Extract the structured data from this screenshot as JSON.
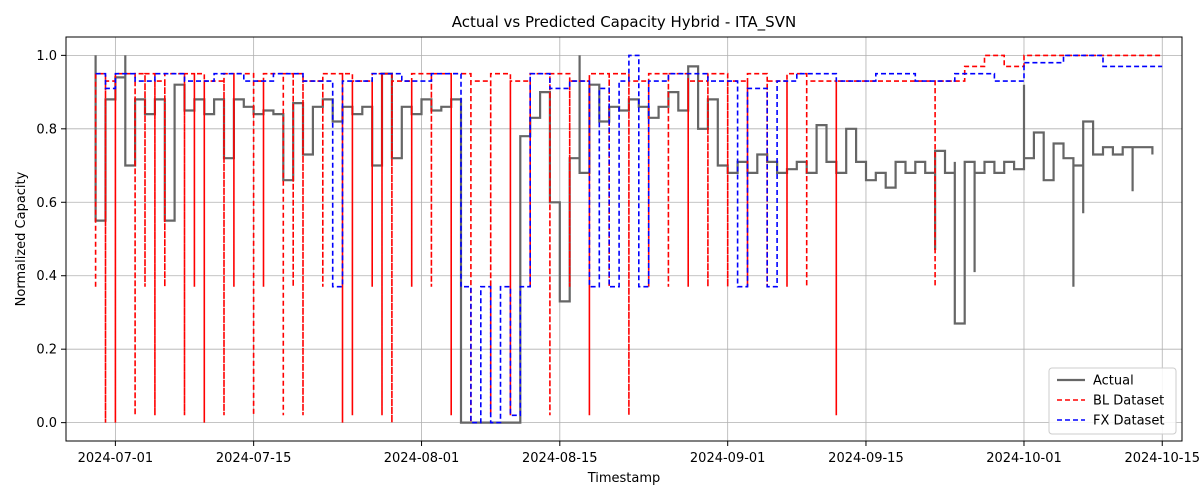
{
  "chart_data": {
    "type": "line",
    "title": "Actual vs Predicted Capacity Hybrid - ITA_SVN",
    "xlabel": "Timestamp",
    "ylabel": "Normalized Capacity",
    "xlim": [
      "2024-06-26",
      "2024-10-17"
    ],
    "ylim": [
      -0.05,
      1.05
    ],
    "x_ticks": [
      "2024-07-01",
      "2024-07-15",
      "2024-08-01",
      "2024-08-15",
      "2024-09-01",
      "2024-09-15",
      "2024-10-01",
      "2024-10-15"
    ],
    "y_ticks": [
      "0.0",
      "0.2",
      "0.4",
      "0.6",
      "0.8",
      "1.0"
    ],
    "grid": true,
    "legend_position": "bottom-right",
    "series": [
      {
        "name": "Actual",
        "color": "#666666",
        "style": "solid",
        "step": true,
        "points": [
          [
            "2024-06-29",
            1.0
          ],
          [
            "2024-06-29",
            0.55
          ],
          [
            "2024-06-30",
            0.88
          ],
          [
            "2024-07-01",
            0.94
          ],
          [
            "2024-07-02",
            1.0
          ],
          [
            "2024-07-02",
            0.7
          ],
          [
            "2024-07-03",
            0.88
          ],
          [
            "2024-07-04",
            0.84
          ],
          [
            "2024-07-05",
            0.88
          ],
          [
            "2024-07-06",
            0.55
          ],
          [
            "2024-07-07",
            0.92
          ],
          [
            "2024-07-08",
            0.85
          ],
          [
            "2024-07-09",
            0.88
          ],
          [
            "2024-07-10",
            0.84
          ],
          [
            "2024-07-11",
            0.88
          ],
          [
            "2024-07-12",
            0.72
          ],
          [
            "2024-07-13",
            0.88
          ],
          [
            "2024-07-14",
            0.86
          ],
          [
            "2024-07-15",
            0.84
          ],
          [
            "2024-07-16",
            0.85
          ],
          [
            "2024-07-17",
            0.84
          ],
          [
            "2024-07-18",
            0.66
          ],
          [
            "2024-07-19",
            0.87
          ],
          [
            "2024-07-20",
            0.73
          ],
          [
            "2024-07-21",
            0.86
          ],
          [
            "2024-07-22",
            0.88
          ],
          [
            "2024-07-23",
            0.82
          ],
          [
            "2024-07-24",
            0.86
          ],
          [
            "2024-07-25",
            0.84
          ],
          [
            "2024-07-26",
            0.86
          ],
          [
            "2024-07-27",
            0.7
          ],
          [
            "2024-07-28",
            0.95
          ],
          [
            "2024-07-29",
            0.72
          ],
          [
            "2024-07-30",
            0.86
          ],
          [
            "2024-07-31",
            0.84
          ],
          [
            "2024-08-01",
            0.88
          ],
          [
            "2024-08-02",
            0.85
          ],
          [
            "2024-08-03",
            0.86
          ],
          [
            "2024-08-04",
            0.88
          ],
          [
            "2024-08-05",
            0.76
          ],
          [
            "2024-08-05",
            0.0
          ],
          [
            "2024-08-11",
            0.0
          ],
          [
            "2024-08-11",
            0.78
          ],
          [
            "2024-08-12",
            0.83
          ],
          [
            "2024-08-13",
            0.9
          ],
          [
            "2024-08-14",
            0.6
          ],
          [
            "2024-08-15",
            0.33
          ],
          [
            "2024-08-16",
            0.72
          ],
          [
            "2024-08-17",
            1.0
          ],
          [
            "2024-08-17",
            0.68
          ],
          [
            "2024-08-18",
            0.92
          ],
          [
            "2024-08-19",
            0.82
          ],
          [
            "2024-08-20",
            0.86
          ],
          [
            "2024-08-21",
            0.85
          ],
          [
            "2024-08-22",
            0.88
          ],
          [
            "2024-08-23",
            0.86
          ],
          [
            "2024-08-24",
            0.83
          ],
          [
            "2024-08-25",
            0.86
          ],
          [
            "2024-08-26",
            0.9
          ],
          [
            "2024-08-27",
            0.85
          ],
          [
            "2024-08-28",
            0.97
          ],
          [
            "2024-08-29",
            0.8
          ],
          [
            "2024-08-30",
            0.88
          ],
          [
            "2024-08-31",
            0.7
          ],
          [
            "2024-09-01",
            0.68
          ],
          [
            "2024-09-02",
            0.71
          ],
          [
            "2024-09-03",
            0.68
          ],
          [
            "2024-09-04",
            0.73
          ],
          [
            "2024-09-05",
            0.71
          ],
          [
            "2024-09-06",
            0.68
          ],
          [
            "2024-09-07",
            0.69
          ],
          [
            "2024-09-08",
            0.71
          ],
          [
            "2024-09-09",
            0.68
          ],
          [
            "2024-09-10",
            0.81
          ],
          [
            "2024-09-11",
            0.71
          ],
          [
            "2024-09-12",
            0.68
          ],
          [
            "2024-09-13",
            0.8
          ],
          [
            "2024-09-14",
            0.71
          ],
          [
            "2024-09-15",
            0.66
          ],
          [
            "2024-09-16",
            0.68
          ],
          [
            "2024-09-17",
            0.64
          ],
          [
            "2024-09-18",
            0.71
          ],
          [
            "2024-09-19",
            0.68
          ],
          [
            "2024-09-20",
            0.71
          ],
          [
            "2024-09-21",
            0.68
          ],
          [
            "2024-09-22",
            0.47
          ],
          [
            "2024-09-22",
            0.74
          ],
          [
            "2024-09-23",
            0.68
          ],
          [
            "2024-09-24",
            0.71
          ],
          [
            "2024-09-24",
            0.27
          ],
          [
            "2024-09-25",
            0.71
          ],
          [
            "2024-09-26",
            0.41
          ],
          [
            "2024-09-26",
            0.68
          ],
          [
            "2024-09-27",
            0.71
          ],
          [
            "2024-09-28",
            0.68
          ],
          [
            "2024-09-29",
            0.71
          ],
          [
            "2024-09-30",
            0.69
          ],
          [
            "2024-10-01",
            0.92
          ],
          [
            "2024-10-01",
            0.72
          ],
          [
            "2024-10-02",
            0.79
          ],
          [
            "2024-10-03",
            0.66
          ],
          [
            "2024-10-04",
            0.76
          ],
          [
            "2024-10-05",
            0.72
          ],
          [
            "2024-10-06",
            0.37
          ],
          [
            "2024-10-06",
            0.7
          ],
          [
            "2024-10-07",
            0.57
          ],
          [
            "2024-10-07",
            0.82
          ],
          [
            "2024-10-08",
            0.73
          ],
          [
            "2024-10-09",
            0.75
          ],
          [
            "2024-10-10",
            0.73
          ],
          [
            "2024-10-11",
            0.75
          ],
          [
            "2024-10-12",
            0.63
          ],
          [
            "2024-10-12",
            0.75
          ],
          [
            "2024-10-14",
            0.75
          ],
          [
            "2024-10-14",
            0.73
          ]
        ]
      },
      {
        "name": "BL Dataset",
        "color": "#ff0000",
        "style": "dashed",
        "step": true,
        "points": [
          [
            "2024-06-29",
            0.37
          ],
          [
            "2024-06-29",
            0.95
          ],
          [
            "2024-06-30",
            0.0
          ],
          [
            "2024-06-30",
            0.93
          ],
          [
            "2024-07-01",
            0.0
          ],
          [
            "2024-07-01",
            0.95
          ],
          [
            "2024-07-03",
            0.02
          ],
          [
            "2024-07-03",
            0.95
          ],
          [
            "2024-07-04",
            0.37
          ],
          [
            "2024-07-04",
            0.95
          ],
          [
            "2024-07-05",
            0.02
          ],
          [
            "2024-07-05",
            0.93
          ],
          [
            "2024-07-06",
            0.37
          ],
          [
            "2024-07-06",
            0.95
          ],
          [
            "2024-07-08",
            0.02
          ],
          [
            "2024-07-08",
            0.95
          ],
          [
            "2024-07-09",
            0.37
          ],
          [
            "2024-07-09",
            0.95
          ],
          [
            "2024-07-10",
            0.0
          ],
          [
            "2024-07-10",
            0.93
          ],
          [
            "2024-07-12",
            0.02
          ],
          [
            "2024-07-12",
            0.95
          ],
          [
            "2024-07-13",
            0.37
          ],
          [
            "2024-07-13",
            0.95
          ],
          [
            "2024-07-15",
            0.02
          ],
          [
            "2024-07-15",
            0.93
          ],
          [
            "2024-07-16",
            0.37
          ],
          [
            "2024-07-16",
            0.95
          ],
          [
            "2024-07-18",
            0.02
          ],
          [
            "2024-07-18",
            0.95
          ],
          [
            "2024-07-19",
            0.37
          ],
          [
            "2024-07-19",
            0.95
          ],
          [
            "2024-07-20",
            0.02
          ],
          [
            "2024-07-20",
            0.93
          ],
          [
            "2024-07-22",
            0.37
          ],
          [
            "2024-07-22",
            0.95
          ],
          [
            "2024-07-24",
            0.0
          ],
          [
            "2024-07-24",
            0.95
          ],
          [
            "2024-07-25",
            0.02
          ],
          [
            "2024-07-25",
            0.93
          ],
          [
            "2024-07-27",
            0.37
          ],
          [
            "2024-07-27",
            0.95
          ],
          [
            "2024-07-28",
            0.02
          ],
          [
            "2024-07-28",
            0.95
          ],
          [
            "2024-07-29",
            0.0
          ],
          [
            "2024-07-29",
            0.93
          ],
          [
            "2024-07-31",
            0.37
          ],
          [
            "2024-07-31",
            0.95
          ],
          [
            "2024-08-02",
            0.37
          ],
          [
            "2024-08-02",
            0.95
          ],
          [
            "2024-08-04",
            0.02
          ],
          [
            "2024-08-04",
            0.95
          ],
          [
            "2024-08-06",
            0.0
          ],
          [
            "2024-08-06",
            0.93
          ],
          [
            "2024-08-08",
            0.02
          ],
          [
            "2024-08-08",
            0.95
          ],
          [
            "2024-08-10",
            0.02
          ],
          [
            "2024-08-10",
            0.93
          ],
          [
            "2024-08-12",
            0.37
          ],
          [
            "2024-08-12",
            0.95
          ],
          [
            "2024-08-14",
            0.02
          ],
          [
            "2024-08-14",
            0.95
          ],
          [
            "2024-08-16",
            0.37
          ],
          [
            "2024-08-16",
            0.93
          ],
          [
            "2024-08-18",
            0.02
          ],
          [
            "2024-08-18",
            0.95
          ],
          [
            "2024-08-20",
            0.37
          ],
          [
            "2024-08-20",
            0.95
          ],
          [
            "2024-08-22",
            0.02
          ],
          [
            "2024-08-22",
            0.93
          ],
          [
            "2024-08-24",
            0.37
          ],
          [
            "2024-08-24",
            0.95
          ],
          [
            "2024-08-26",
            0.37
          ],
          [
            "2024-08-26",
            0.95
          ],
          [
            "2024-08-28",
            0.37
          ],
          [
            "2024-08-28",
            0.93
          ],
          [
            "2024-08-30",
            0.37
          ],
          [
            "2024-08-30",
            0.95
          ],
          [
            "2024-09-01",
            0.37
          ],
          [
            "2024-09-01",
            0.93
          ],
          [
            "2024-09-03",
            0.37
          ],
          [
            "2024-09-03",
            0.95
          ],
          [
            "2024-09-05",
            0.37
          ],
          [
            "2024-09-05",
            0.93
          ],
          [
            "2024-09-07",
            0.37
          ],
          [
            "2024-09-07",
            0.95
          ],
          [
            "2024-09-09",
            0.37
          ],
          [
            "2024-09-09",
            0.93
          ],
          [
            "2024-09-12",
            0.02
          ],
          [
            "2024-09-12",
            0.93
          ],
          [
            "2024-09-22",
            0.37
          ],
          [
            "2024-09-22",
            0.93
          ],
          [
            "2024-09-25",
            0.97
          ],
          [
            "2024-09-27",
            1.0
          ],
          [
            "2024-09-29",
            0.97
          ],
          [
            "2024-10-01",
            1.0
          ],
          [
            "2024-10-15",
            1.0
          ]
        ]
      },
      {
        "name": "FX Dataset",
        "color": "#0000ff",
        "style": "dashed",
        "step": true,
        "points": [
          [
            "2024-06-29",
            0.95
          ],
          [
            "2024-06-30",
            0.91
          ],
          [
            "2024-07-01",
            0.95
          ],
          [
            "2024-07-03",
            0.93
          ],
          [
            "2024-07-05",
            0.95
          ],
          [
            "2024-07-08",
            0.93
          ],
          [
            "2024-07-11",
            0.95
          ],
          [
            "2024-07-14",
            0.93
          ],
          [
            "2024-07-17",
            0.95
          ],
          [
            "2024-07-20",
            0.93
          ],
          [
            "2024-07-23",
            0.37
          ],
          [
            "2024-07-24",
            0.93
          ],
          [
            "2024-07-27",
            0.95
          ],
          [
            "2024-07-30",
            0.93
          ],
          [
            "2024-08-02",
            0.95
          ],
          [
            "2024-08-05",
            0.37
          ],
          [
            "2024-08-06",
            0.0
          ],
          [
            "2024-08-07",
            0.37
          ],
          [
            "2024-08-08",
            0.0
          ],
          [
            "2024-08-09",
            0.37
          ],
          [
            "2024-08-10",
            0.02
          ],
          [
            "2024-08-11",
            0.37
          ],
          [
            "2024-08-12",
            0.95
          ],
          [
            "2024-08-14",
            0.91
          ],
          [
            "2024-08-16",
            0.93
          ],
          [
            "2024-08-18",
            0.37
          ],
          [
            "2024-08-19",
            0.91
          ],
          [
            "2024-08-20",
            0.37
          ],
          [
            "2024-08-21",
            0.93
          ],
          [
            "2024-08-22",
            1.0
          ],
          [
            "2024-08-23",
            0.37
          ],
          [
            "2024-08-24",
            0.93
          ],
          [
            "2024-08-26",
            0.95
          ],
          [
            "2024-08-30",
            0.93
          ],
          [
            "2024-09-02",
            0.37
          ],
          [
            "2024-09-03",
            0.91
          ],
          [
            "2024-09-05",
            0.37
          ],
          [
            "2024-09-06",
            0.93
          ],
          [
            "2024-09-08",
            0.95
          ],
          [
            "2024-09-12",
            0.93
          ],
          [
            "2024-09-16",
            0.95
          ],
          [
            "2024-09-20",
            0.93
          ],
          [
            "2024-09-24",
            0.95
          ],
          [
            "2024-09-28",
            0.93
          ],
          [
            "2024-10-01",
            0.98
          ],
          [
            "2024-10-05",
            1.0
          ],
          [
            "2024-10-09",
            0.97
          ],
          [
            "2024-10-15",
            0.97
          ]
        ]
      }
    ]
  }
}
